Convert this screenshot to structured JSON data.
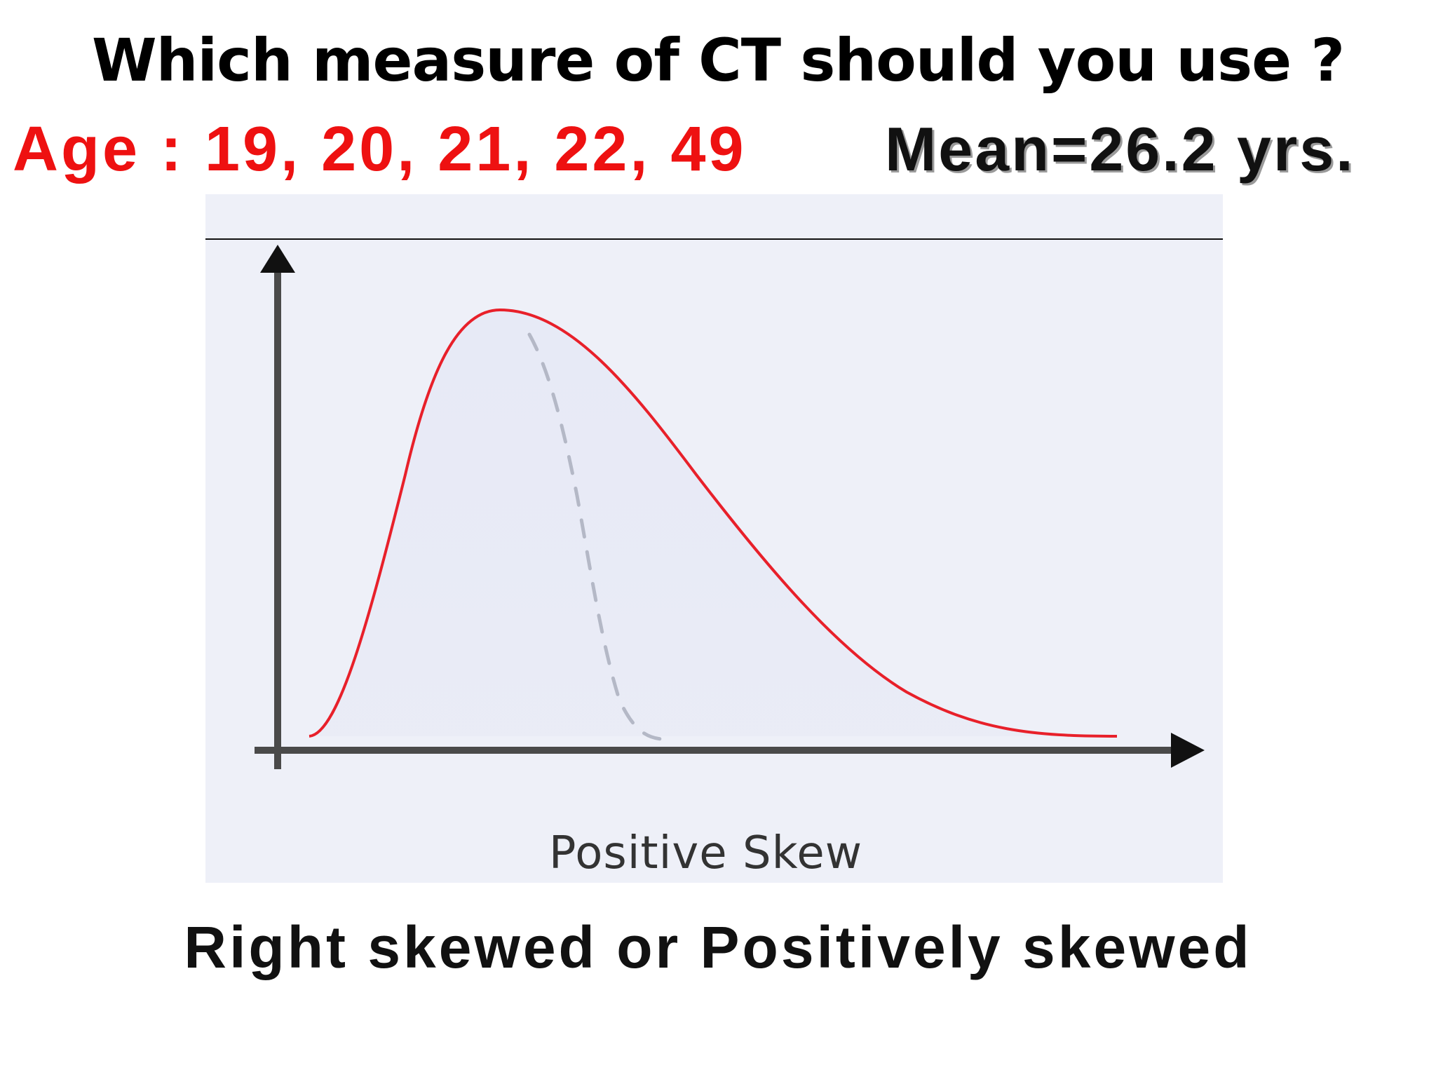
{
  "slide": {
    "title": "Which measure of CT should you use ?",
    "ages_text": "Age : 19, 20, 21, 22, 49",
    "mean_text": "Mean=26.2 yrs.",
    "footer": "Right skewed or Positively skewed"
  },
  "diagram": {
    "caption": "Positive Skew",
    "colors": {
      "background": "#eef0f8",
      "skewed_curve": "#e8202a",
      "reference_curve": "#b8bcc8",
      "axes": "#444444"
    }
  }
}
